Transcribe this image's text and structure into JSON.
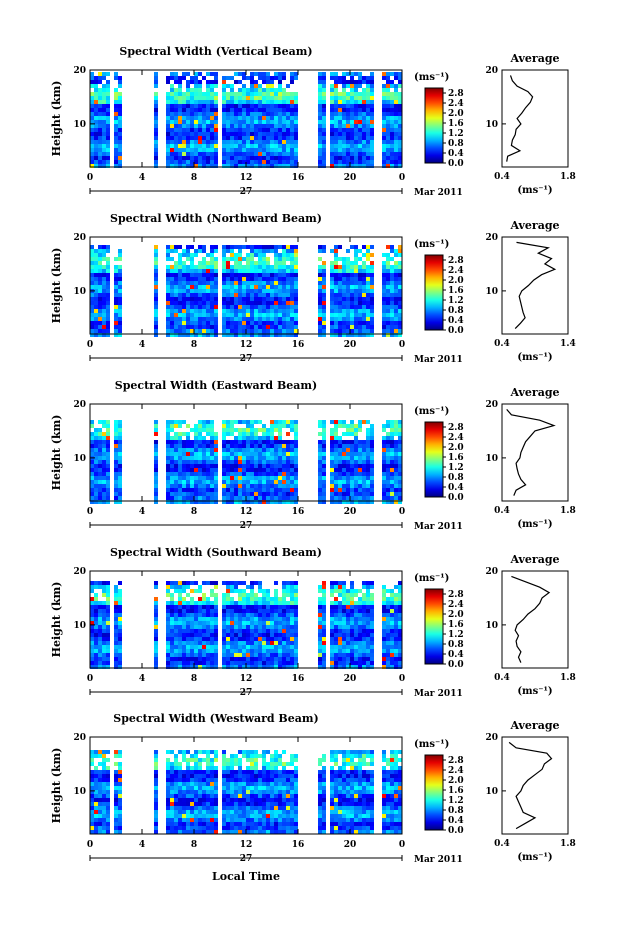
{
  "figure": {
    "x_axis_label": "Local Time",
    "date_label": "Mar 2011",
    "day_label": "27",
    "y_axis_label": "Height (km)",
    "colorbar_unit": "(ms⁻¹)",
    "average_title": "Average",
    "average_unit": "(ms⁻¹)"
  },
  "chart_data": [
    {
      "type": "heatmap",
      "title": "Spectral Width (Vertical Beam)",
      "xlabel": "Local Time",
      "ylabel": "Height (km)",
      "x_ticks": [
        "0",
        "4",
        "8",
        "12",
        "16",
        "20",
        "0"
      ],
      "y_ticks": [
        "10",
        "20"
      ],
      "xlim": [
        0,
        24
      ],
      "ylim": [
        2,
        20
      ],
      "color_scale": {
        "ticks": [
          "0.0",
          "0.4",
          "0.8",
          "1.2",
          "1.6",
          "2.0",
          "2.4",
          "2.8"
        ],
        "range": [
          0,
          3.0
        ],
        "colormap": "jet"
      },
      "gaps_hours": [
        [
          1.5,
          1.8
        ],
        [
          2.4,
          3.8
        ],
        [
          4.0,
          4.7
        ],
        [
          5.2,
          5.7
        ],
        [
          9.6,
          10.0
        ],
        [
          15.7,
          17.3
        ],
        [
          17.9,
          18.2
        ],
        [
          21.8,
          22.4
        ]
      ],
      "data_top_km": 19.5,
      "average": {
        "title": "Average",
        "xlim": [
          0.4,
          1.8
        ],
        "x_ticks": [
          "0.4",
          "1.8"
        ],
        "y_ticks": [
          "10",
          "20"
        ],
        "ylim": [
          2,
          20
        ],
        "profile": [
          {
            "h": 3,
            "v": 0.5
          },
          {
            "h": 4,
            "v": 0.52
          },
          {
            "h": 5,
            "v": 0.78
          },
          {
            "h": 6,
            "v": 0.6
          },
          {
            "h": 7,
            "v": 0.62
          },
          {
            "h": 8,
            "v": 0.68
          },
          {
            "h": 9,
            "v": 0.7
          },
          {
            "h": 10,
            "v": 0.8
          },
          {
            "h": 11,
            "v": 0.72
          },
          {
            "h": 12,
            "v": 0.82
          },
          {
            "h": 13,
            "v": 0.9
          },
          {
            "h": 14,
            "v": 1.0
          },
          {
            "h": 15,
            "v": 1.05
          },
          {
            "h": 16,
            "v": 0.95
          },
          {
            "h": 17,
            "v": 0.72
          },
          {
            "h": 18,
            "v": 0.62
          },
          {
            "h": 19,
            "v": 0.58
          }
        ]
      }
    },
    {
      "type": "heatmap",
      "title": "Spectral Width (Northward Beam)",
      "xlabel": "Local Time",
      "ylabel": "Height (km)",
      "x_ticks": [
        "0",
        "4",
        "8",
        "12",
        "16",
        "20",
        "0"
      ],
      "y_ticks": [
        "10",
        "20"
      ],
      "xlim": [
        0,
        24
      ],
      "ylim": [
        2,
        20
      ],
      "color_scale": {
        "ticks": [
          "0.0",
          "0.4",
          "0.8",
          "1.2",
          "1.6",
          "2.0",
          "2.4",
          "2.8"
        ],
        "range": [
          0,
          3.0
        ],
        "colormap": "jet"
      },
      "gaps_hours": [
        [
          1.5,
          1.8
        ],
        [
          2.4,
          3.8
        ],
        [
          4.0,
          4.7
        ],
        [
          5.2,
          5.7
        ],
        [
          9.6,
          10.0
        ],
        [
          15.7,
          17.3
        ],
        [
          17.9,
          18.2
        ],
        [
          21.8,
          22.4
        ]
      ],
      "data_top_km": 18.5,
      "average": {
        "title": "Average",
        "xlim": [
          0.4,
          1.4
        ],
        "x_ticks": [
          "0.4",
          "1.4"
        ],
        "y_ticks": [
          "10",
          "20"
        ],
        "ylim": [
          2,
          20
        ],
        "profile": [
          {
            "h": 3,
            "v": 0.6
          },
          {
            "h": 4,
            "v": 0.68
          },
          {
            "h": 5,
            "v": 0.75
          },
          {
            "h": 6,
            "v": 0.72
          },
          {
            "h": 7,
            "v": 0.7
          },
          {
            "h": 8,
            "v": 0.68
          },
          {
            "h": 9,
            "v": 0.66
          },
          {
            "h": 10,
            "v": 0.7
          },
          {
            "h": 11,
            "v": 0.8
          },
          {
            "h": 12,
            "v": 0.88
          },
          {
            "h": 13,
            "v": 1.0
          },
          {
            "h": 14,
            "v": 1.2
          },
          {
            "h": 15,
            "v": 1.05
          },
          {
            "h": 16,
            "v": 1.15
          },
          {
            "h": 17,
            "v": 0.95
          },
          {
            "h": 18,
            "v": 1.1
          },
          {
            "h": 19,
            "v": 0.62
          }
        ]
      }
    },
    {
      "type": "heatmap",
      "title": "Spectral Width (Eastward Beam)",
      "xlabel": "Local Time",
      "ylabel": "Height (km)",
      "x_ticks": [
        "0",
        "4",
        "8",
        "12",
        "16",
        "20",
        "0"
      ],
      "y_ticks": [
        "10",
        "20"
      ],
      "xlim": [
        0,
        24
      ],
      "ylim": [
        2,
        20
      ],
      "color_scale": {
        "ticks": [
          "0.0",
          "0.4",
          "0.8",
          "1.2",
          "1.6",
          "2.0",
          "2.4",
          "2.8"
        ],
        "range": [
          0,
          3.0
        ],
        "colormap": "jet"
      },
      "gaps_hours": [
        [
          1.5,
          1.8
        ],
        [
          2.4,
          3.8
        ],
        [
          4.0,
          4.7
        ],
        [
          5.2,
          5.7
        ],
        [
          9.6,
          10.0
        ],
        [
          15.7,
          17.3
        ],
        [
          17.9,
          18.2
        ],
        [
          21.8,
          22.4
        ]
      ],
      "data_top_km": 17.0,
      "average": {
        "title": "Average",
        "xlim": [
          0.4,
          1.8
        ],
        "x_ticks": [
          "0.4",
          "1.8"
        ],
        "y_ticks": [
          "10",
          "20"
        ],
        "ylim": [
          2,
          20
        ],
        "profile": [
          {
            "h": 3,
            "v": 0.65
          },
          {
            "h": 4,
            "v": 0.7
          },
          {
            "h": 5,
            "v": 0.9
          },
          {
            "h": 6,
            "v": 0.8
          },
          {
            "h": 7,
            "v": 0.75
          },
          {
            "h": 8,
            "v": 0.72
          },
          {
            "h": 9,
            "v": 0.7
          },
          {
            "h": 10,
            "v": 0.78
          },
          {
            "h": 11,
            "v": 0.8
          },
          {
            "h": 12,
            "v": 0.85
          },
          {
            "h": 13,
            "v": 0.9
          },
          {
            "h": 14,
            "v": 1.0
          },
          {
            "h": 15,
            "v": 1.1
          },
          {
            "h": 16,
            "v": 1.5
          },
          {
            "h": 17,
            "v": 1.2
          },
          {
            "h": 18,
            "v": 0.6
          },
          {
            "h": 19,
            "v": 0.5
          }
        ]
      }
    },
    {
      "type": "heatmap",
      "title": "Spectral Width (Southward Beam)",
      "xlabel": "Local Time",
      "ylabel": "Height (km)",
      "x_ticks": [
        "0",
        "4",
        "8",
        "12",
        "16",
        "20",
        "0"
      ],
      "y_ticks": [
        "10",
        "20"
      ],
      "xlim": [
        0,
        24
      ],
      "ylim": [
        2,
        20
      ],
      "color_scale": {
        "ticks": [
          "0.0",
          "0.4",
          "0.8",
          "1.2",
          "1.6",
          "2.0",
          "2.4",
          "2.8"
        ],
        "range": [
          0,
          3.0
        ],
        "colormap": "jet"
      },
      "gaps_hours": [
        [
          1.5,
          1.8
        ],
        [
          2.4,
          3.8
        ],
        [
          4.0,
          4.7
        ],
        [
          5.2,
          5.7
        ],
        [
          9.6,
          10.0
        ],
        [
          15.7,
          17.3
        ],
        [
          17.9,
          18.2
        ],
        [
          21.8,
          22.4
        ]
      ],
      "data_top_km": 18.0,
      "average": {
        "title": "Average",
        "xlim": [
          0.4,
          1.8
        ],
        "x_ticks": [
          "0.4",
          "1.8"
        ],
        "y_ticks": [
          "10",
          "20"
        ],
        "ylim": [
          2,
          20
        ],
        "profile": [
          {
            "h": 3,
            "v": 0.8
          },
          {
            "h": 4,
            "v": 0.75
          },
          {
            "h": 5,
            "v": 0.8
          },
          {
            "h": 6,
            "v": 0.72
          },
          {
            "h": 7,
            "v": 0.7
          },
          {
            "h": 8,
            "v": 0.75
          },
          {
            "h": 9,
            "v": 0.68
          },
          {
            "h": 10,
            "v": 0.72
          },
          {
            "h": 11,
            "v": 0.85
          },
          {
            "h": 12,
            "v": 0.95
          },
          {
            "h": 13,
            "v": 1.1
          },
          {
            "h": 14,
            "v": 1.2
          },
          {
            "h": 15,
            "v": 1.25
          },
          {
            "h": 16,
            "v": 1.4
          },
          {
            "h": 17,
            "v": 1.2
          },
          {
            "h": 18,
            "v": 0.9
          },
          {
            "h": 19,
            "v": 0.6
          }
        ]
      }
    },
    {
      "type": "heatmap",
      "title": "Spectral Width (Westward Beam)",
      "xlabel": "Local Time",
      "ylabel": "Height (km)",
      "x_ticks": [
        "0",
        "4",
        "8",
        "12",
        "16",
        "20",
        "0"
      ],
      "y_ticks": [
        "10",
        "20"
      ],
      "xlim": [
        0,
        24
      ],
      "ylim": [
        2,
        20
      ],
      "color_scale": {
        "ticks": [
          "0.0",
          "0.4",
          "0.8",
          "1.2",
          "1.6",
          "2.0",
          "2.4",
          "2.8"
        ],
        "range": [
          0,
          3.0
        ],
        "colormap": "jet"
      },
      "gaps_hours": [
        [
          1.5,
          1.8
        ],
        [
          2.4,
          3.8
        ],
        [
          4.0,
          4.7
        ],
        [
          5.2,
          5.7
        ],
        [
          9.6,
          10.0
        ],
        [
          15.7,
          17.3
        ],
        [
          17.9,
          18.2
        ],
        [
          21.8,
          22.4
        ]
      ],
      "data_top_km": 17.5,
      "average": {
        "title": "Average",
        "xlim": [
          0.4,
          1.8
        ],
        "x_ticks": [
          "0.4",
          "1.8"
        ],
        "y_ticks": [
          "10",
          "20"
        ],
        "ylim": [
          2,
          20
        ],
        "profile": [
          {
            "h": 3,
            "v": 0.7
          },
          {
            "h": 4,
            "v": 0.9
          },
          {
            "h": 5,
            "v": 1.1
          },
          {
            "h": 6,
            "v": 0.85
          },
          {
            "h": 7,
            "v": 0.8
          },
          {
            "h": 8,
            "v": 0.75
          },
          {
            "h": 9,
            "v": 0.7
          },
          {
            "h": 10,
            "v": 0.8
          },
          {
            "h": 11,
            "v": 0.85
          },
          {
            "h": 12,
            "v": 0.95
          },
          {
            "h": 13,
            "v": 1.1
          },
          {
            "h": 14,
            "v": 1.25
          },
          {
            "h": 15,
            "v": 1.3
          },
          {
            "h": 16,
            "v": 1.45
          },
          {
            "h": 17,
            "v": 1.35
          },
          {
            "h": 18,
            "v": 0.7
          },
          {
            "h": 19,
            "v": 0.55
          }
        ]
      }
    }
  ]
}
